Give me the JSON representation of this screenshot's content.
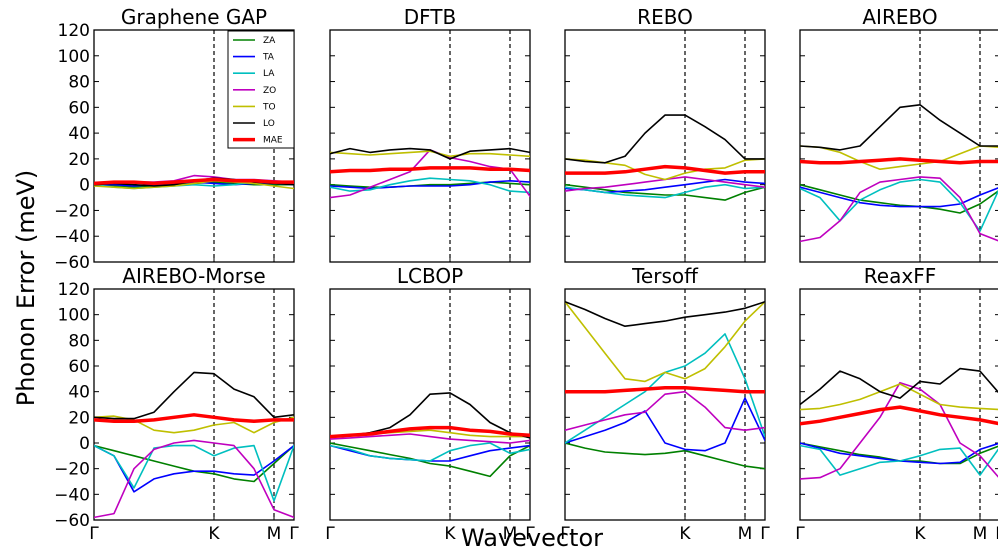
{
  "chart_data": {
    "type": "line",
    "xlabel": "Wavevector",
    "ylabel": "Phonon Error (meV)",
    "ylim": [
      -60,
      120
    ],
    "yticks": [
      -60,
      -40,
      -20,
      0,
      20,
      40,
      60,
      80,
      100,
      120
    ],
    "x_range": [
      0,
      1
    ],
    "xtick_labels": [
      {
        "x": 0,
        "label": "Γ"
      },
      {
        "x": 0.6,
        "label": "K"
      },
      {
        "x": 0.9,
        "label": "M"
      },
      {
        "x": 1.0,
        "label": "Γ"
      }
    ],
    "high_symmetry_lines": [
      0.6,
      0.9
    ],
    "legend_placement": "upper-right of first panel",
    "series_meta": [
      {
        "name": "ZA",
        "color": "#008000"
      },
      {
        "name": "TA",
        "color": "#0000ff"
      },
      {
        "name": "LA",
        "color": "#00bfbf"
      },
      {
        "name": "ZO",
        "color": "#bf00bf"
      },
      {
        "name": "TO",
        "color": "#bfbf00"
      },
      {
        "name": "LO",
        "color": "#000000"
      },
      {
        "name": "MAE",
        "color": "#ff0000"
      }
    ],
    "x": [
      0,
      0.1,
      0.2,
      0.3,
      0.4,
      0.5,
      0.6,
      0.7,
      0.8,
      0.9,
      1.0
    ],
    "panels": [
      {
        "title": "Graphene GAP",
        "series": {
          "ZA": [
            0,
            -1,
            -2,
            -1,
            0,
            1,
            2,
            1,
            0,
            0,
            0
          ],
          "TA": [
            0,
            0,
            -1,
            0,
            1,
            2,
            1,
            0,
            1,
            1,
            0
          ],
          "LA": [
            0,
            -2,
            -3,
            -2,
            -1,
            0,
            -1,
            0,
            2,
            1,
            0
          ],
          "ZO": [
            0,
            1,
            2,
            2,
            3,
            7,
            6,
            4,
            4,
            3,
            2
          ],
          "TO": [
            -1,
            -2,
            -3,
            -2,
            -1,
            1,
            3,
            2,
            1,
            -1,
            -3
          ],
          "LO": [
            0,
            1,
            0,
            -1,
            0,
            3,
            5,
            4,
            2,
            1,
            0
          ],
          "MAE": [
            1,
            2,
            2,
            1,
            2,
            3,
            4,
            3,
            3,
            2,
            2
          ]
        }
      },
      {
        "title": "DFTB",
        "series": {
          "ZA": [
            0,
            -1,
            -2,
            -2,
            -1,
            0,
            0,
            1,
            2,
            1,
            0
          ],
          "TA": [
            -1,
            -2,
            -3,
            -2,
            -1,
            -1,
            -1,
            0,
            2,
            3,
            2
          ],
          "LA": [
            -2,
            -5,
            -4,
            0,
            3,
            5,
            4,
            3,
            0,
            -5,
            -6
          ],
          "ZO": [
            -10,
            -8,
            -2,
            4,
            10,
            27,
            21,
            18,
            14,
            12,
            -9
          ],
          "TO": [
            25,
            24,
            23,
            24,
            25,
            26,
            22,
            24,
            24,
            23,
            22
          ],
          "LO": [
            24,
            28,
            25,
            27,
            28,
            27,
            20,
            26,
            27,
            28,
            25
          ],
          "MAE": [
            10,
            11,
            11,
            12,
            12,
            13,
            13,
            13,
            12,
            12,
            11
          ]
        }
      },
      {
        "title": "REBO",
        "series": {
          "ZA": [
            0,
            -2,
            -4,
            -6,
            -7,
            -8,
            -8,
            -10,
            -12,
            -6,
            -2
          ],
          "TA": [
            -3,
            -4,
            -6,
            -5,
            -4,
            -2,
            0,
            2,
            4,
            2,
            1
          ],
          "LA": [
            -2,
            -4,
            -6,
            -8,
            -9,
            -10,
            -6,
            -2,
            0,
            -3,
            -2
          ],
          "ZO": [
            -5,
            -3,
            -2,
            0,
            2,
            4,
            6,
            4,
            2,
            0,
            -2
          ],
          "TO": [
            20,
            19,
            17,
            15,
            8,
            4,
            9,
            12,
            13,
            19,
            20
          ],
          "LO": [
            20,
            18,
            17,
            22,
            40,
            54,
            54,
            45,
            35,
            20,
            20
          ],
          "MAE": [
            9,
            9,
            9,
            10,
            12,
            14,
            13,
            11,
            9,
            10,
            10
          ]
        }
      },
      {
        "title": "AIREBO",
        "series": {
          "ZA": [
            0,
            -4,
            -8,
            -12,
            -14,
            -16,
            -17,
            -19,
            -22,
            -15,
            -4
          ],
          "TA": [
            -2,
            -6,
            -10,
            -14,
            -16,
            -17,
            -17,
            -17,
            -15,
            -8,
            -2
          ],
          "LA": [
            -3,
            -10,
            -28,
            -12,
            -4,
            2,
            4,
            2,
            -14,
            -36,
            -2
          ],
          "ZO": [
            -44,
            -41,
            -28,
            -6,
            2,
            4,
            6,
            5,
            -10,
            -38,
            -44
          ],
          "TO": [
            30,
            29,
            25,
            18,
            12,
            14,
            16,
            18,
            24,
            30,
            29
          ],
          "LO": [
            30,
            29,
            27,
            30,
            45,
            60,
            62,
            50,
            40,
            30,
            30
          ],
          "MAE": [
            18,
            17,
            17,
            18,
            19,
            20,
            19,
            18,
            17,
            18,
            18
          ]
        }
      },
      {
        "title": "AIREBO-Morse",
        "series": {
          "ZA": [
            -2,
            -6,
            -10,
            -14,
            -18,
            -22,
            -24,
            -28,
            -30,
            -16,
            -2
          ],
          "TA": [
            -2,
            -10,
            -38,
            -28,
            -24,
            -22,
            -22,
            -24,
            -25,
            -14,
            -2
          ],
          "LA": [
            -2,
            -10,
            -35,
            -4,
            -2,
            -2,
            -10,
            -4,
            -2,
            -45,
            -2
          ],
          "ZO": [
            -58,
            -55,
            -20,
            -5,
            0,
            2,
            0,
            -2,
            -20,
            -52,
            -58
          ],
          "TO": [
            20,
            21,
            18,
            10,
            8,
            10,
            14,
            16,
            8,
            16,
            20
          ],
          "LO": [
            20,
            19,
            19,
            24,
            40,
            55,
            54,
            42,
            36,
            20,
            22
          ],
          "MAE": [
            18,
            17,
            17,
            18,
            20,
            22,
            20,
            18,
            17,
            18,
            18
          ]
        }
      },
      {
        "title": "LCBOP",
        "series": {
          "ZA": [
            0,
            -3,
            -6,
            -9,
            -12,
            -16,
            -18,
            -22,
            -26,
            -10,
            -2
          ],
          "TA": [
            -2,
            -6,
            -10,
            -12,
            -13,
            -14,
            -14,
            -10,
            -6,
            -4,
            -2
          ],
          "LA": [
            -2,
            -5,
            -10,
            -12,
            -13,
            -14,
            -6,
            -2,
            0,
            -8,
            -5
          ],
          "ZO": [
            3,
            4,
            5,
            6,
            7,
            5,
            3,
            2,
            1,
            0,
            2
          ],
          "TO": [
            5,
            6,
            7,
            8,
            9,
            10,
            8,
            6,
            5,
            5,
            5
          ],
          "LO": [
            5,
            6,
            8,
            12,
            22,
            38,
            39,
            30,
            16,
            8,
            4
          ],
          "MAE": [
            5,
            6,
            7,
            9,
            11,
            12,
            12,
            10,
            9,
            7,
            6
          ]
        }
      },
      {
        "title": "Tersoff",
        "series": {
          "ZA": [
            0,
            -4,
            -7,
            -8,
            -9,
            -8,
            -6,
            -10,
            -14,
            -18,
            -20
          ],
          "TA": [
            0,
            5,
            10,
            16,
            25,
            0,
            -5,
            -6,
            0,
            35,
            2
          ],
          "LA": [
            0,
            10,
            20,
            30,
            40,
            55,
            60,
            70,
            85,
            50,
            5
          ],
          "ZO": [
            10,
            14,
            18,
            22,
            24,
            38,
            40,
            28,
            12,
            10,
            12
          ],
          "TO": [
            110,
            90,
            70,
            50,
            48,
            55,
            50,
            58,
            75,
            95,
            110
          ],
          "LO": [
            110,
            104,
            97,
            91,
            93,
            95,
            98,
            100,
            102,
            105,
            110
          ],
          "MAE": [
            40,
            40,
            40,
            41,
            42,
            43,
            43,
            42,
            41,
            40,
            40
          ]
        }
      },
      {
        "title": "ReaxFF",
        "series": {
          "ZA": [
            0,
            -3,
            -6,
            -9,
            -11,
            -14,
            -14,
            -16,
            -16,
            -8,
            -2
          ],
          "TA": [
            0,
            -4,
            -8,
            -10,
            -12,
            -14,
            -15,
            -16,
            -15,
            -5,
            0
          ],
          "LA": [
            -2,
            -5,
            -25,
            -20,
            -15,
            -14,
            -10,
            -5,
            -4,
            -25,
            -3
          ],
          "ZO": [
            -28,
            -27,
            -20,
            0,
            20,
            47,
            42,
            30,
            0,
            -10,
            -28
          ],
          "TO": [
            26,
            27,
            30,
            34,
            40,
            46,
            38,
            30,
            28,
            27,
            26
          ],
          "LO": [
            30,
            42,
            56,
            50,
            40,
            35,
            48,
            46,
            58,
            56,
            38
          ],
          "MAE": [
            15,
            17,
            20,
            23,
            26,
            28,
            25,
            22,
            20,
            18,
            15
          ]
        }
      }
    ]
  }
}
